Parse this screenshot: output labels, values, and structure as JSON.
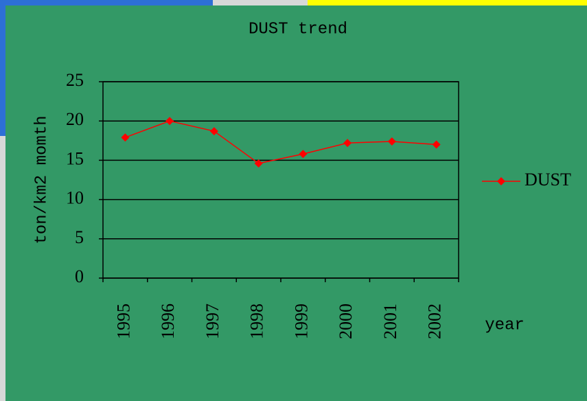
{
  "chart_data": {
    "type": "line",
    "title": "DUST trend",
    "categories": [
      "1995",
      "1996",
      "1997",
      "1998",
      "1999",
      "2000",
      "2001",
      "2002"
    ],
    "series": [
      {
        "name": "DUST",
        "color": "#ff0000",
        "values": [
          17.9,
          20.0,
          18.7,
          14.6,
          15.8,
          17.2,
          17.4,
          17.0
        ]
      }
    ],
    "x_label": "year",
    "y_label": "ton/km2 momth",
    "ylim": [
      0,
      25
    ],
    "yticks": [
      0,
      5,
      10,
      15,
      20,
      25
    ],
    "grid": true,
    "legend": "right"
  }
}
